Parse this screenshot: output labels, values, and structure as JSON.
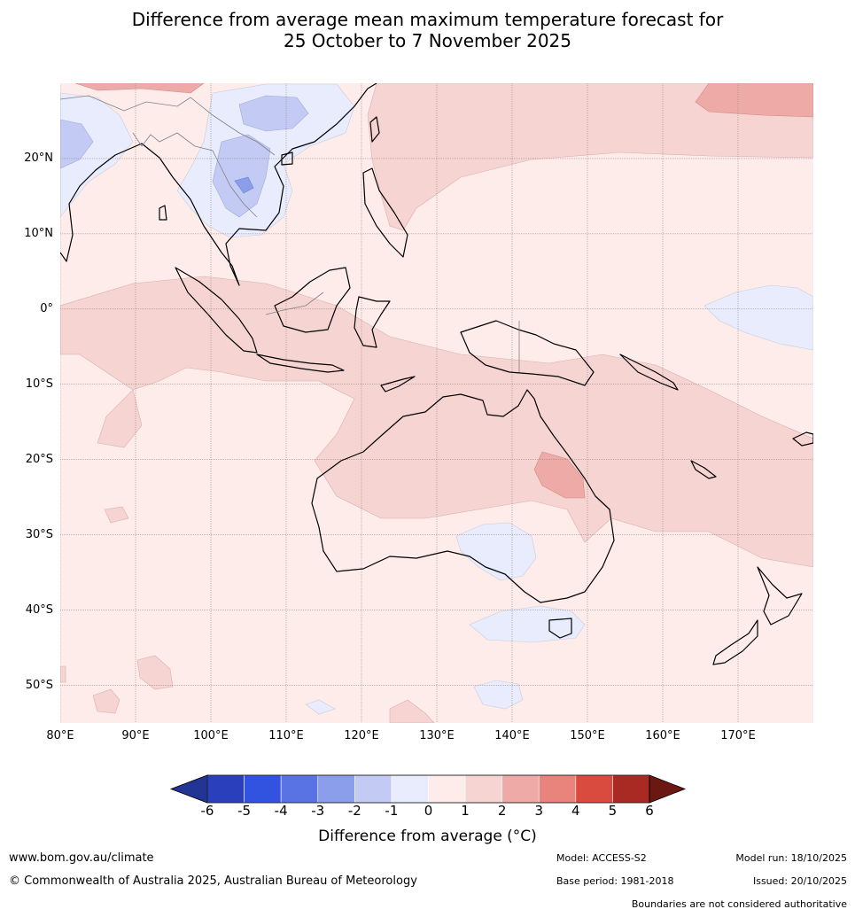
{
  "title": {
    "line1": "Difference from average mean maximum temperature forecast for",
    "line2": "25 October to 7 November 2025"
  },
  "map": {
    "lat_labels": [
      "20°N",
      "10°N",
      "0°",
      "10°S",
      "20°S",
      "30°S",
      "40°S",
      "50°S"
    ],
    "lon_labels": [
      "80°E",
      "90°E",
      "100°E",
      "110°E",
      "120°E",
      "130°E",
      "140°E",
      "150°E",
      "160°E",
      "170°E"
    ],
    "lat_values": [
      20,
      10,
      0,
      -10,
      -20,
      -30,
      -40,
      -50
    ],
    "lon_values": [
      80,
      90,
      100,
      110,
      120,
      130,
      140,
      150,
      160,
      170
    ],
    "extent": {
      "lon_min": 80,
      "lon_max": 180,
      "lat_min": -55,
      "lat_max": 30
    }
  },
  "colorbar": {
    "ticks": [
      "-6",
      "-5",
      "-4",
      "-3",
      "-2",
      "-1",
      "0",
      "1",
      "2",
      "3",
      "4",
      "5",
      "6"
    ],
    "colors": [
      "#233594",
      "#2a3fbb",
      "#3252e0",
      "#5a73e4",
      "#8a9eeb",
      "#c3cbf4",
      "#e8ecfc",
      "#fdecea",
      "#f6d4d2",
      "#edaaa6",
      "#e8847c",
      "#d94a3f",
      "#a82a22",
      "#6b1813"
    ],
    "title": "Difference from average (°C)"
  },
  "footer": {
    "website": "www.bom.gov.au/climate",
    "copyright": "© Commonwealth of Australia 2025, Australian Bureau of Meteorology",
    "model": "Model: ACCESS-S2",
    "base_period": "Base period: 1981-2018",
    "model_run": "Model run: 18/10/2025",
    "issued": "Issued: 20/10/2025",
    "disclaimer": "Boundaries are not considered authoritative"
  }
}
